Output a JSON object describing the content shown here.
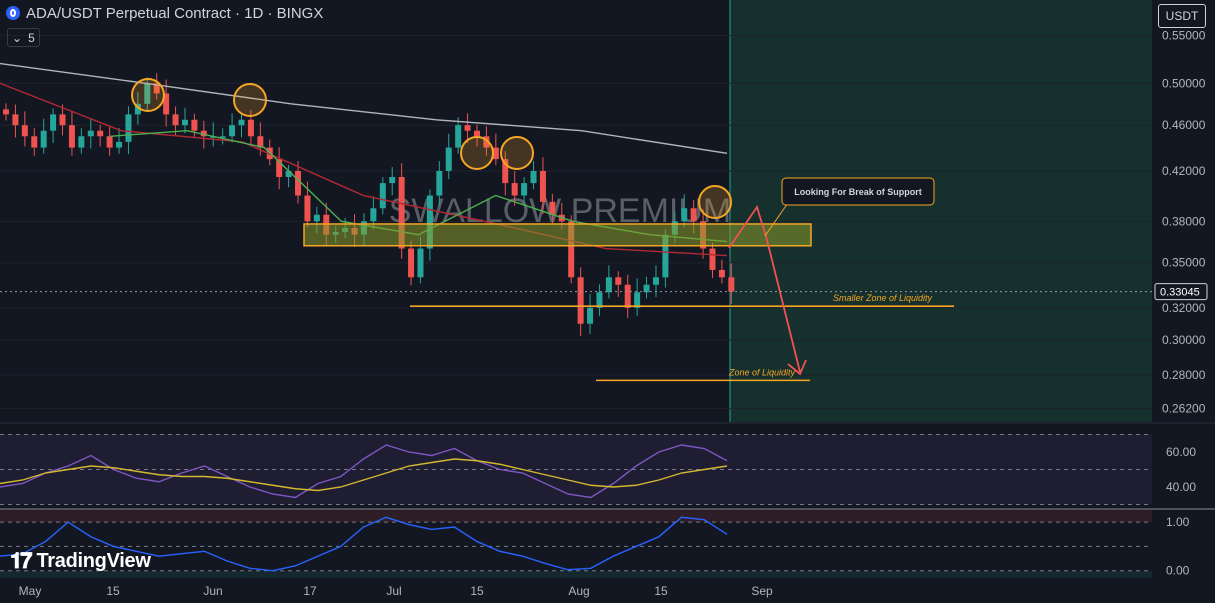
{
  "header": {
    "title": "ADA/USDT Perpetual Contract · 1D · BINGX",
    "indicator_count": "5",
    "currency_button": "USDT"
  },
  "watermark": "SWALLOW PREMIUM",
  "branding": "TradingView",
  "colors": {
    "background": "#131722",
    "bull": "#26a69a",
    "bear": "#ef5350",
    "annotation": "#f5a623",
    "zone_fill": "#8a9a2a",
    "rsi_line": "#7e57c2",
    "lower_line": "#2962ff"
  },
  "chart_data": [
    {
      "type": "candlestick",
      "title": "ADA/USDT Perpetual Contract · 1D · BINGX",
      "price_axis_ticks": [
        "0.55000",
        "0.50000",
        "0.46000",
        "0.42000",
        "0.38000",
        "0.35000",
        "0.32000",
        "0.30000",
        "0.28000",
        "0.26200"
      ],
      "y_scale": "log",
      "ylim": [
        0.255,
        0.59
      ],
      "time_axis_labels": [
        "May",
        "15",
        "Jun",
        "17",
        "Jul",
        "15",
        "Aug",
        "15",
        "Sep"
      ],
      "current_price": "0.33045",
      "series": [
        {
          "name": "",
          "kind": "candles",
          "x_range": [
            "2024-04-24",
            "2024-08-28"
          ],
          "close_path": [
            0.47,
            0.46,
            0.45,
            0.44,
            0.455,
            0.47,
            0.46,
            0.44,
            0.45,
            0.455,
            0.45,
            0.44,
            0.445,
            0.47,
            0.48,
            0.5,
            0.49,
            0.47,
            0.46,
            0.465,
            0.455,
            0.45,
            0.45,
            0.45,
            0.46,
            0.465,
            0.45,
            0.44,
            0.43,
            0.415,
            0.42,
            0.4,
            0.38,
            0.385,
            0.37,
            0.372,
            0.375,
            0.37,
            0.38,
            0.39,
            0.41,
            0.415,
            0.36,
            0.34,
            0.36,
            0.4,
            0.42,
            0.44,
            0.46,
            0.455,
            0.45,
            0.44,
            0.43,
            0.41,
            0.4,
            0.41,
            0.42,
            0.395,
            0.385,
            0.38,
            0.34,
            0.31,
            0.32,
            0.33,
            0.34,
            0.335,
            0.32,
            0.33,
            0.335,
            0.34,
            0.37,
            0.38,
            0.39,
            0.38,
            0.36,
            0.345,
            0.34,
            0.33045
          ]
        },
        {
          "name": "",
          "kind": "moving-average-white",
          "color": "#b2b5be",
          "values": [
            0.52,
            0.5,
            0.48,
            0.465,
            0.455,
            0.435
          ]
        },
        {
          "name": "",
          "kind": "moving-average-red",
          "color": "#b22833",
          "values": [
            0.5,
            0.455,
            0.445,
            0.4,
            0.38,
            0.36,
            0.355
          ]
        },
        {
          "name": "",
          "kind": "moving-average-green",
          "color": "#4caf50",
          "values": [
            0.45,
            0.455,
            0.44,
            0.38,
            0.37,
            0.4,
            0.38,
            0.37,
            0.365
          ]
        }
      ],
      "annotations": [
        {
          "kind": "resistance-zone",
          "price_range": [
            0.362,
            0.378
          ]
        },
        {
          "kind": "horizontal-line",
          "price": 0.321,
          "label": "Smaller Zone of Liquidity"
        },
        {
          "kind": "horizontal-line",
          "price": 0.277,
          "label": "Zone of Liquidity"
        },
        {
          "kind": "callout",
          "label": "Looking For Break of Support"
        },
        {
          "kind": "circles",
          "count": 5
        }
      ]
    },
    {
      "type": "line",
      "panel": "RSI",
      "ticks": [
        "60.00",
        "40.00"
      ],
      "ylim": [
        28,
        76
      ],
      "series": [
        {
          "name": "",
          "color": "#7e57c2",
          "values": [
            40,
            42,
            48,
            52,
            58,
            50,
            45,
            43,
            48,
            52,
            46,
            40,
            36,
            34,
            42,
            46,
            56,
            64,
            60,
            58,
            62,
            55,
            50,
            48,
            42,
            36,
            34,
            42,
            52,
            60,
            64,
            62,
            55
          ]
        },
        {
          "name": "",
          "color": "#d4b830",
          "values": [
            42,
            44,
            48,
            50,
            52,
            51,
            49,
            47,
            46,
            46,
            45,
            43,
            41,
            39,
            38,
            40,
            44,
            48,
            52,
            54,
            56,
            55,
            53,
            50,
            47,
            44,
            41,
            40,
            41,
            44,
            48,
            50,
            52
          ]
        }
      ]
    },
    {
      "type": "line",
      "panel": "oscillator",
      "ticks": [
        "1.00",
        "0.00"
      ],
      "ylim": [
        -0.15,
        1.25
      ],
      "series": [
        {
          "name": "",
          "color": "#2962ff",
          "values": [
            0.3,
            0.35,
            0.6,
            1.0,
            0.7,
            0.5,
            0.4,
            0.3,
            0.35,
            0.4,
            0.2,
            0.05,
            0.0,
            0.1,
            0.3,
            0.5,
            0.9,
            1.1,
            0.95,
            0.85,
            0.9,
            0.6,
            0.4,
            0.3,
            0.15,
            0.02,
            0.05,
            0.3,
            0.5,
            0.7,
            1.1,
            1.05,
            0.75
          ]
        }
      ]
    }
  ]
}
